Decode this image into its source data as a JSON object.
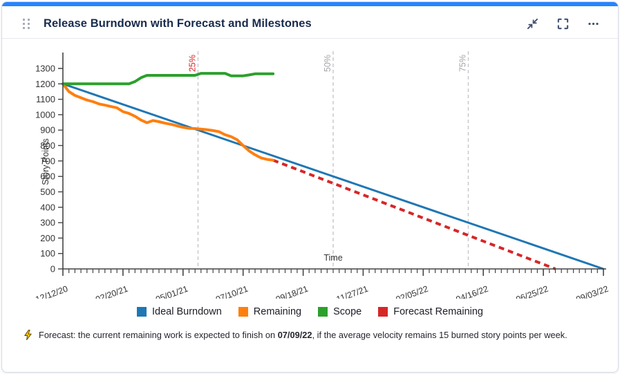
{
  "card": {
    "accent_bar_color": "#2684FF",
    "header": {
      "title": "Release Burndown with Forecast and Milestones"
    },
    "footer": {
      "prefix": "Forecast: the current remaining work is expected to finish on ",
      "date": "07/09/22",
      "suffix": ", if the average velocity remains 15 burned story points per week."
    }
  },
  "legend": {
    "items": [
      {
        "label": "Ideal Burndown",
        "color": "#1f77b4"
      },
      {
        "label": "Remaining",
        "color": "#ff7f0e"
      },
      {
        "label": "Scope",
        "color": "#2ca02c"
      },
      {
        "label": "Forecast Remaining",
        "color": "#d62728"
      }
    ]
  },
  "chart_data": {
    "type": "line",
    "title": "Release Burndown with Forecast and Milestones",
    "xlabel": "Time",
    "ylabel": "Story Points",
    "ylim": [
      0,
      1300
    ],
    "y_tick_step": 100,
    "x_weeks_total": 90,
    "x_major_every_weeks": 10,
    "x_tick_labels": [
      "12/12/20",
      "02/20/21",
      "05/01/21",
      "07/10/21",
      "09/18/21",
      "11/27/21",
      "02/05/22",
      "04/16/22",
      "06/25/22",
      "09/03/22"
    ],
    "grid": false,
    "legend_position": "bottom",
    "axis_color": "#444444",
    "tick_label_color": "#333333",
    "milestone_line_color": "#c4c6cb",
    "milestones": [
      {
        "label": "25%",
        "week": 22.5,
        "label_color": "#d62728"
      },
      {
        "label": "50%",
        "week": 45,
        "label_color": "#a3a6ab"
      },
      {
        "label": "75%",
        "week": 67.5,
        "label_color": "#a3a6ab"
      }
    ],
    "series": [
      {
        "name": "Ideal Burndown",
        "color": "#1f77b4",
        "style": "solid",
        "width": 3,
        "points": [
          [
            0,
            1200
          ],
          [
            90,
            0
          ]
        ]
      },
      {
        "name": "Forecast Remaining",
        "color": "#d62728",
        "style": "dashed",
        "width": 4,
        "points": [
          [
            35,
            705
          ],
          [
            82,
            0
          ]
        ]
      },
      {
        "name": "Remaining",
        "color": "#ff7f0e",
        "style": "solid",
        "width": 4,
        "start_week": 0,
        "values": [
          1200,
          1150,
          1125,
          1110,
          1095,
          1085,
          1070,
          1062,
          1053,
          1045,
          1020,
          1008,
          990,
          965,
          948,
          962,
          955,
          945,
          938,
          928,
          918,
          912,
          910,
          907,
          903,
          897,
          890,
          870,
          858,
          838,
          800,
          765,
          740,
          720,
          710,
          705
        ]
      },
      {
        "name": "Scope",
        "color": "#2ca02c",
        "style": "solid",
        "width": 4,
        "start_week": 0,
        "values": [
          1200,
          1200,
          1200,
          1200,
          1200,
          1200,
          1200,
          1200,
          1200,
          1200,
          1200,
          1200,
          1215,
          1240,
          1255,
          1255,
          1255,
          1255,
          1255,
          1255,
          1255,
          1255,
          1255,
          1268,
          1268,
          1268,
          1268,
          1268,
          1252,
          1252,
          1252,
          1258,
          1265,
          1265,
          1265,
          1265
        ]
      }
    ]
  }
}
